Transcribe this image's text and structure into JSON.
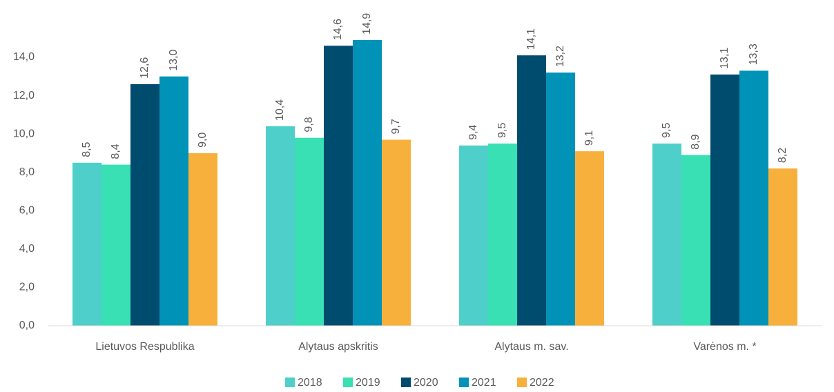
{
  "chart_data": {
    "type": "bar",
    "categories": [
      "Lietuvos Respublika",
      "Alytaus apskritis",
      "Alytaus m. sav.",
      "Varėnos m. *"
    ],
    "series": [
      {
        "name": "2018",
        "color": "#4fcfc9",
        "values": [
          8.5,
          10.4,
          9.4,
          9.5
        ],
        "value_labels": [
          "8,5",
          "10,4",
          "9,4",
          "9,5"
        ]
      },
      {
        "name": "2019",
        "color": "#38e0b4",
        "values": [
          8.4,
          9.8,
          9.5,
          8.9
        ],
        "value_labels": [
          "8,4",
          "9,8",
          "9,5",
          "8,9"
        ]
      },
      {
        "name": "2020",
        "color": "#004c6f",
        "values": [
          12.6,
          14.6,
          14.1,
          13.1
        ],
        "value_labels": [
          "12,6",
          "14,6",
          "14,1",
          "13,1"
        ]
      },
      {
        "name": "2021",
        "color": "#0093b7",
        "values": [
          13.0,
          14.9,
          13.2,
          13.3
        ],
        "value_labels": [
          "13,0",
          "14,9",
          "13,2",
          "13,3"
        ]
      },
      {
        "name": "2022",
        "color": "#f8b03c",
        "values": [
          9.0,
          9.7,
          9.1,
          8.2
        ],
        "value_labels": [
          "9,0",
          "9,7",
          "9,1",
          "8,2"
        ]
      }
    ],
    "ylim": [
      0,
      16
    ],
    "yticks": [
      {
        "value": 0,
        "label": "0,0"
      },
      {
        "value": 2,
        "label": "2,0"
      },
      {
        "value": 4,
        "label": "4,0"
      },
      {
        "value": 6,
        "label": "6,0"
      },
      {
        "value": 8,
        "label": "8,0"
      },
      {
        "value": 10,
        "label": "10,0"
      },
      {
        "value": 12,
        "label": "12,0"
      },
      {
        "value": 14,
        "label": "14,0"
      }
    ],
    "grid": false,
    "legend": "bottom"
  }
}
